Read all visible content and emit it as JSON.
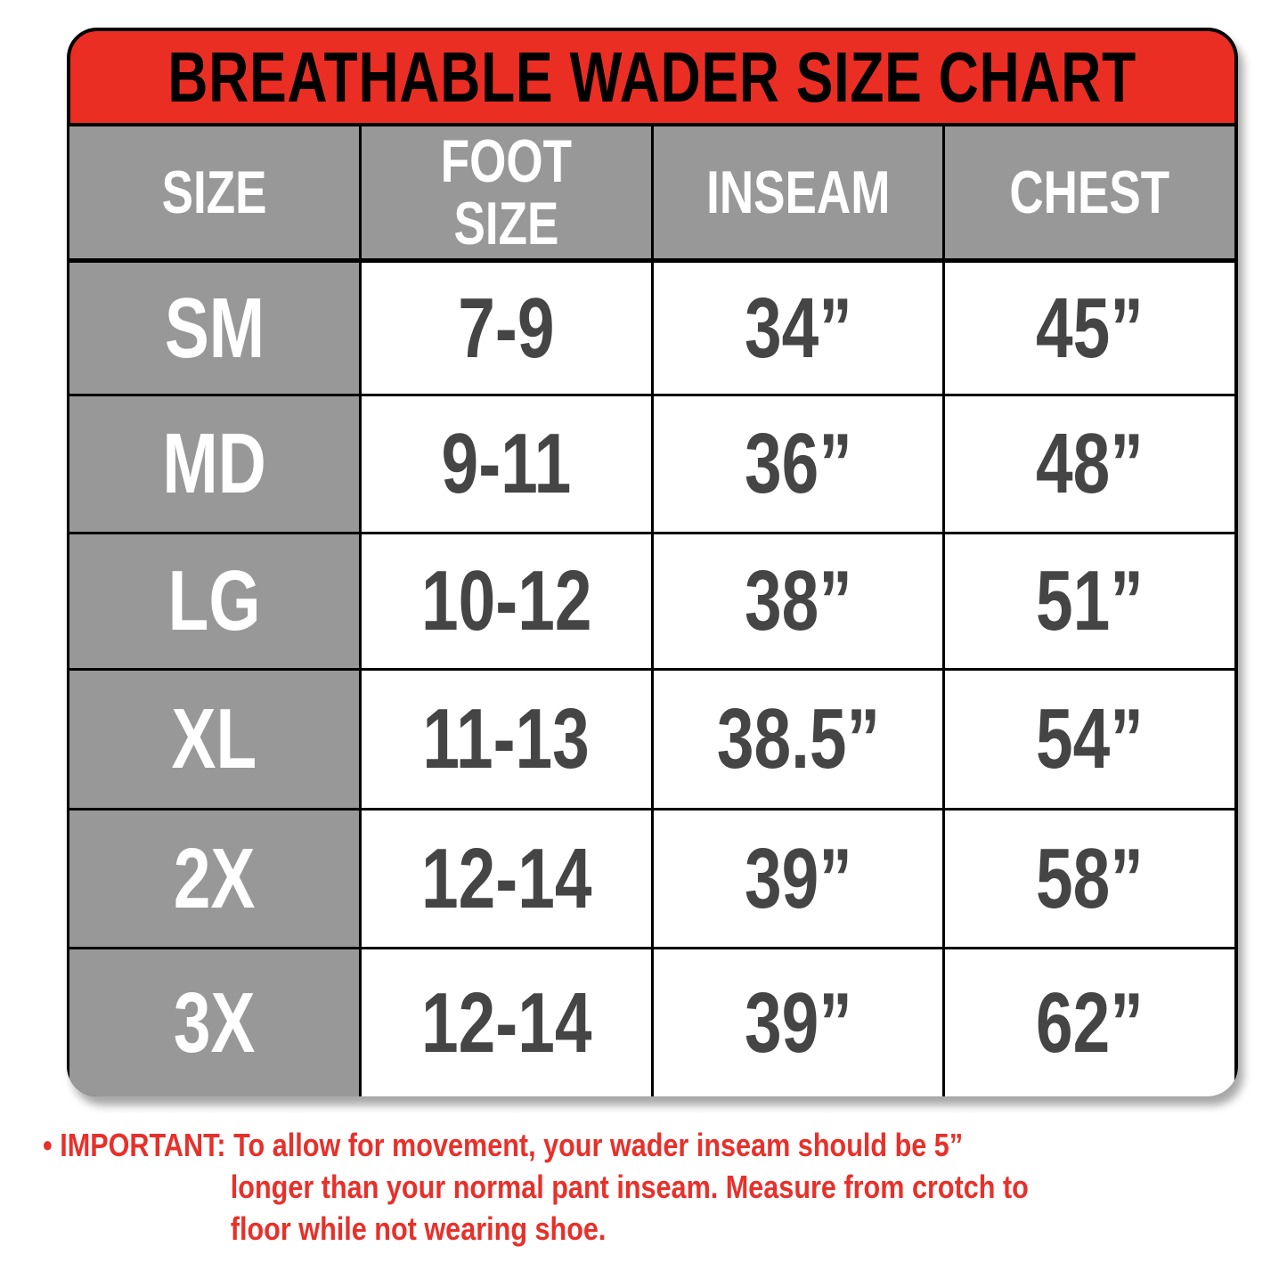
{
  "title": "BREATHABLE WADER SIZE CHART",
  "colors": {
    "title_band": "#ea2e24",
    "header_bg": "#999899",
    "value_text": "#454545",
    "note_text": "#e8302a"
  },
  "table": {
    "headers": [
      "SIZE",
      "FOOT SIZE",
      "INSEAM",
      "CHEST"
    ],
    "header_lines": {
      "foot_1": "FOOT",
      "foot_2": "SIZE"
    },
    "rows": [
      {
        "size": "SM",
        "foot": "7-9",
        "inseam": "34”",
        "chest": "45”"
      },
      {
        "size": "MD",
        "foot": "9-11",
        "inseam": "36”",
        "chest": "48”"
      },
      {
        "size": "LG",
        "foot": "10-12",
        "inseam": "38”",
        "chest": "51”"
      },
      {
        "size": "XL",
        "foot": "11-13",
        "inseam": "38.5”",
        "chest": "54”"
      },
      {
        "size": "2X",
        "foot": "12-14",
        "inseam": "39”",
        "chest": "58”"
      },
      {
        "size": "3X",
        "foot": "12-14",
        "inseam": "39”",
        "chest": "62”"
      }
    ]
  },
  "note": {
    "line1": "• IMPORTANT: To allow for movement, your wader inseam should be 5”",
    "line2": "longer than your normal pant inseam. Measure from crotch to",
    "line3": "floor while not wearing shoe."
  }
}
